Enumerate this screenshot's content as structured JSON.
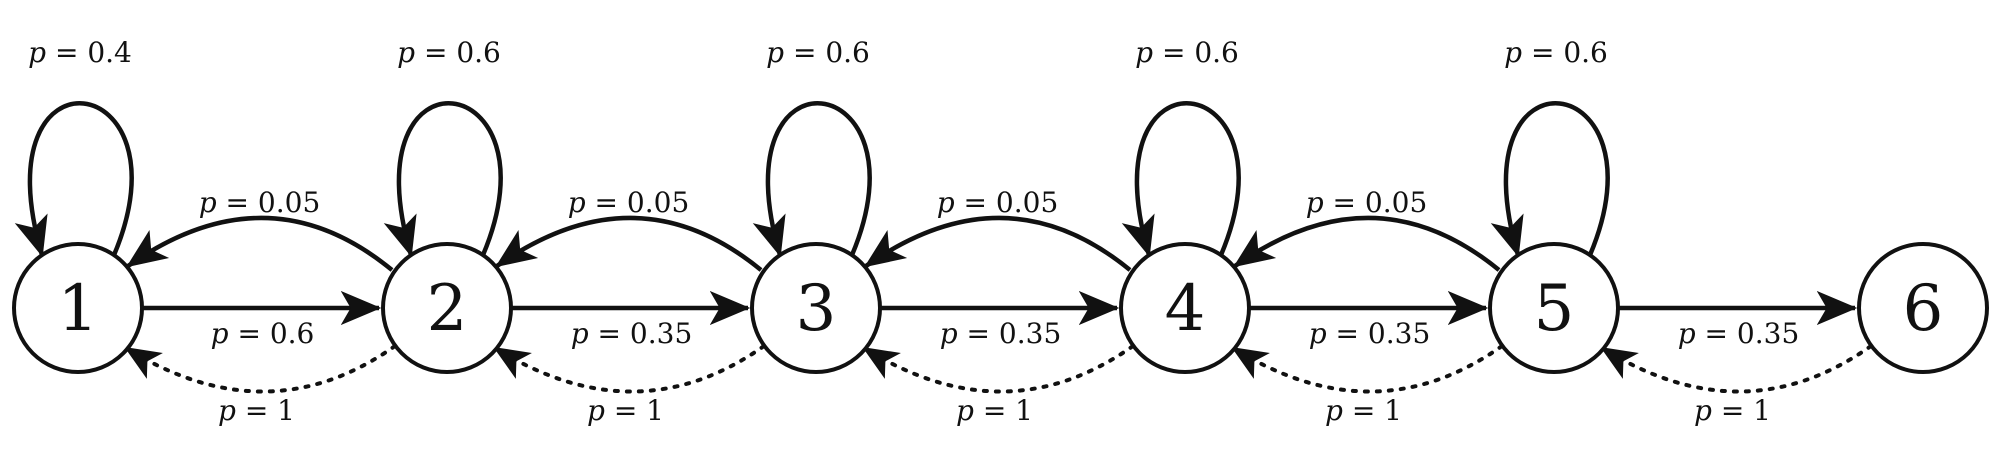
{
  "diagram": {
    "nodes": [
      {
        "id": 1,
        "label": "1"
      },
      {
        "id": 2,
        "label": "2"
      },
      {
        "id": 3,
        "label": "3"
      },
      {
        "id": 4,
        "label": "4"
      },
      {
        "id": 5,
        "label": "5"
      },
      {
        "id": 6,
        "label": "6"
      }
    ],
    "self_loops": [
      {
        "node": 1,
        "label": "p = 0.4"
      },
      {
        "node": 2,
        "label": "p = 0.6"
      },
      {
        "node": 3,
        "label": "p = 0.6"
      },
      {
        "node": 4,
        "label": "p = 0.6"
      },
      {
        "node": 5,
        "label": "p = 0.6"
      }
    ],
    "forward_edges": [
      {
        "from": 1,
        "to": 2,
        "label": "p = 0.6"
      },
      {
        "from": 2,
        "to": 3,
        "label": "p = 0.35"
      },
      {
        "from": 3,
        "to": 4,
        "label": "p = 0.35"
      },
      {
        "from": 4,
        "to": 5,
        "label": "p = 0.35"
      },
      {
        "from": 5,
        "to": 6,
        "label": "p = 0.35"
      }
    ],
    "back_edges": [
      {
        "from": 2,
        "to": 1,
        "label": "p = 0.05"
      },
      {
        "from": 3,
        "to": 2,
        "label": "p = 0.05"
      },
      {
        "from": 4,
        "to": 3,
        "label": "p = 0.05"
      },
      {
        "from": 5,
        "to": 4,
        "label": "p = 0.05"
      }
    ],
    "reset_edges": [
      {
        "from": 2,
        "to": 1,
        "label": "p = 1"
      },
      {
        "from": 3,
        "to": 2,
        "label": "p = 1"
      },
      {
        "from": 4,
        "to": 3,
        "label": "p = 1"
      },
      {
        "from": 5,
        "to": 4,
        "label": "p = 1"
      },
      {
        "from": 6,
        "to": 5,
        "label": "p = 1"
      }
    ]
  }
}
